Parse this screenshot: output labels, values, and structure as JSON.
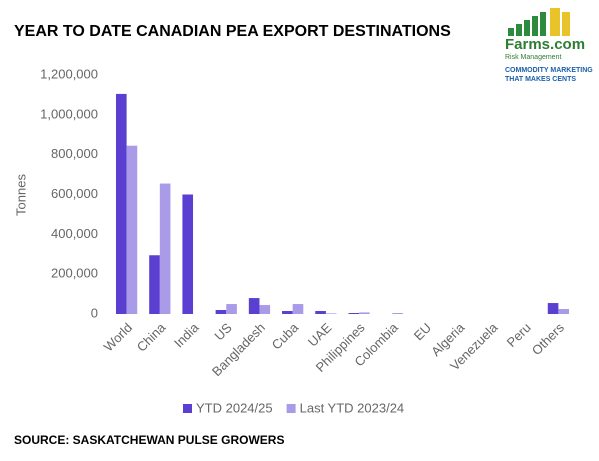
{
  "chart_data": {
    "type": "bar",
    "title": "YEAR TO DATE CANADIAN PEA EXPORT DESTINATIONS",
    "source": "SOURCE: SASKATCHEWAN PULSE GROWERS",
    "y_label": "Tonnes",
    "categories": [
      "World",
      "China",
      "India",
      "US",
      "Bangladesh",
      "Cuba",
      "UAE",
      "Philippines",
      "Colombia",
      "EU",
      "Algeria",
      "Venezuela",
      "Peru",
      "Others"
    ],
    "series": [
      {
        "name": "YTD 2024/25",
        "color": "#5a3fd1",
        "values": [
          1105000,
          295000,
          600000,
          20000,
          80000,
          15000,
          15000,
          5000,
          0,
          0,
          0,
          0,
          0,
          55000
        ]
      },
      {
        "name": "Last YTD 2023/24",
        "color": "#a99be8",
        "values": [
          845000,
          655000,
          0,
          50000,
          45000,
          50000,
          3000,
          8000,
          5000,
          0,
          0,
          0,
          0,
          25000
        ]
      }
    ],
    "ylim": [
      0,
      1200000
    ],
    "yticks": [
      0,
      {
        "value": 200000,
        "label": "200,000"
      },
      {
        "value": 400000,
        "label": "400,000"
      },
      {
        "value": 600000,
        "label": "600,000"
      },
      {
        "value": 800000,
        "label": "800,000"
      },
      {
        "value": 1000000,
        "label": "1,000,000"
      },
      {
        "value": 1200000,
        "label": "1,200,000"
      }
    ],
    "grid": false
  },
  "logo": {
    "name": "Farms.com",
    "sub": "Risk Management",
    "tag1": "COMMODITY MARKETING",
    "tag2": "THAT MAKES CENTS"
  }
}
